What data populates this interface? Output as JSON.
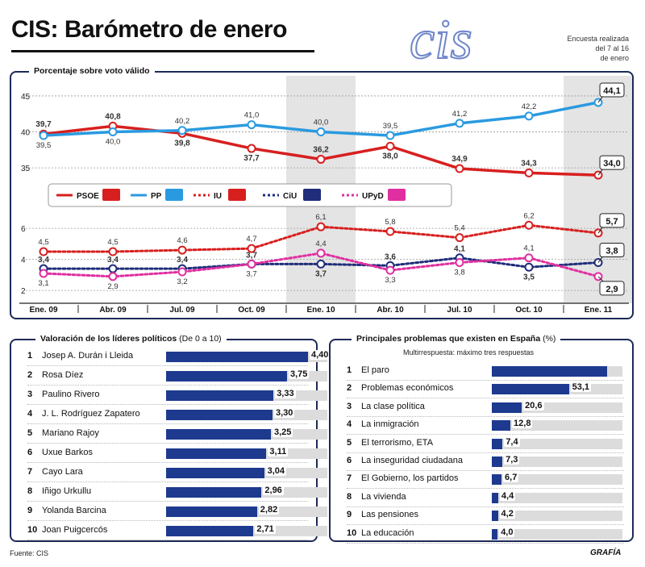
{
  "header": {
    "title": "CIS: Barómetro de enero",
    "logo_text": "cis",
    "survey_note": [
      "Encuesta realizada",
      "del 7 al 16",
      "de enero"
    ]
  },
  "colors": {
    "psoe": "#d81f1f",
    "pp": "#2a9ae0",
    "iu": "#d81f1f",
    "ciu": "#1f2d7a",
    "upyd": "#e02fa0",
    "panel_border": "#1d2a57",
    "bar": "#1d3a8f",
    "shaded_col": "#e4e4e4"
  },
  "chart_data": [
    {
      "type": "line",
      "title": "Porcentaje sobre voto válido",
      "x": [
        "Ene. 09",
        "Abr. 09",
        "Jul. 09",
        "Oct. 09",
        "Ene. 10",
        "Abr. 10",
        "Jul. 10",
        "Oct. 10",
        "Ene. 11"
      ],
      "shaded_columns": [
        "Ene. 10",
        "Ene. 11"
      ],
      "upper_panel": {
        "ylim": [
          33,
          46
        ],
        "yticks": [
          35,
          40,
          45
        ],
        "series": [
          {
            "name": "PSOE",
            "key": "psoe",
            "style": "solid",
            "values": [
              39.7,
              40.8,
              39.8,
              37.7,
              36.2,
              38.0,
              34.9,
              34.3,
              34.0
            ],
            "labels": [
              "39,7",
              "40,8",
              "39,8",
              "37,7",
              "36,2",
              "38,0",
              "34,9",
              "34,3",
              "34,0"
            ]
          },
          {
            "name": "PP",
            "key": "pp",
            "style": "solid",
            "values": [
              39.5,
              40.0,
              40.2,
              41.0,
              40.0,
              39.5,
              41.2,
              42.2,
              44.1
            ],
            "labels": [
              "39,5",
              "40,0",
              "40,2",
              "41,0",
              "40,0",
              "39,5",
              "41,2",
              "42,2",
              "44,1"
            ]
          }
        ]
      },
      "lower_panel": {
        "ylim": [
          1.8,
          7.2
        ],
        "yticks": [
          2,
          4,
          6
        ],
        "series": [
          {
            "name": "IU",
            "key": "iu",
            "style": "dotted",
            "values": [
              4.5,
              4.5,
              4.6,
              4.7,
              6.1,
              5.8,
              5.4,
              6.2,
              5.7
            ],
            "labels": [
              "4,5",
              "4,5",
              "4,6",
              "4,7",
              "6,1",
              "5,8",
              "5,4",
              "6,2",
              "5,7"
            ]
          },
          {
            "name": "CiU",
            "key": "ciu",
            "style": "dotted",
            "values": [
              3.4,
              3.4,
              3.4,
              3.7,
              3.7,
              3.6,
              4.1,
              3.5,
              3.8
            ],
            "labels": [
              "3,4",
              "3,4",
              "3,4",
              "3,7",
              "3,7",
              "3,6",
              "4,1",
              "3,5",
              "3,8"
            ]
          },
          {
            "name": "UPyD",
            "key": "upyd",
            "style": "dotted",
            "values": [
              3.1,
              2.9,
              3.2,
              3.7,
              4.4,
              3.3,
              3.8,
              4.1,
              2.9
            ],
            "labels": [
              "3,1",
              "2,9",
              "3,2",
              "3,7",
              "4,4",
              "3,3",
              "3,8",
              "4,1",
              "2,9"
            ]
          }
        ]
      },
      "legend": [
        "PSOE",
        "PP",
        "IU",
        "CiU",
        "UPyD"
      ],
      "boxed_last_values": true
    },
    {
      "type": "bar",
      "title": "Valoración de los líderes políticos",
      "title_paren": "(De 0 a 10)",
      "xlim": [
        0,
        5
      ],
      "categories": [
        "Josep A. Durán i Lleida",
        "Rosa Díez",
        "Paulino Rivero",
        "J. L. Rodríguez Zapatero",
        "Mariano Rajoy",
        "Uxue Barkos",
        "Cayo Lara",
        "Iñigo Urkullu",
        "Yolanda Barcina",
        "Joan Puigcercós"
      ],
      "ranks": [
        "1",
        "2",
        "3",
        "4",
        "5",
        "6",
        "7",
        "8",
        "9",
        "10"
      ],
      "values": [
        4.4,
        3.75,
        3.33,
        3.3,
        3.25,
        3.11,
        3.04,
        2.96,
        2.82,
        2.71
      ],
      "labels": [
        "4,40",
        "3,75",
        "3,33",
        "3,30",
        "3,25",
        "3,11",
        "3,04",
        "2,96",
        "2,82",
        "2,71"
      ]
    },
    {
      "type": "bar",
      "title": "Principales problemas que existen en España",
      "title_paren": "(%)",
      "subtitle": "Multirrespuesta: máximo tres respuestas",
      "xlim": [
        0,
        90
      ],
      "categories": [
        "El paro",
        "Problemas económicos",
        "La clase política",
        "La inmigración",
        "El terrorismo, ETA",
        "La inseguridad ciudadana",
        "El Gobierno, los partidos",
        "La vivienda",
        "Las pensiones",
        "La educación"
      ],
      "ranks": [
        "1",
        "2",
        "3",
        "4",
        "5",
        "6",
        "7",
        "8",
        "9",
        "10"
      ],
      "values": [
        79.4,
        53.1,
        20.6,
        12.8,
        7.4,
        7.3,
        6.7,
        4.4,
        4.2,
        4.0
      ],
      "labels": [
        "",
        "53,1",
        "20,6",
        "12,8",
        "7,4",
        "7,3",
        "6,7",
        "4,4",
        "4,2",
        "4,0"
      ]
    }
  ],
  "footer": {
    "source": "Fuente: CIS",
    "agency": "GRAFÍA"
  }
}
